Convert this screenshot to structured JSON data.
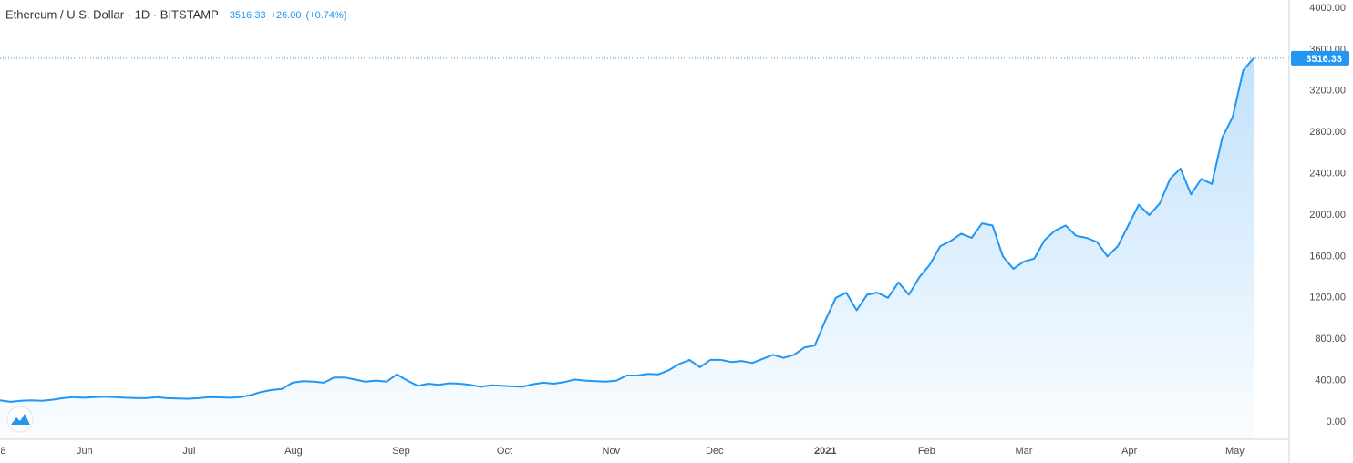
{
  "chart_data": {
    "type": "area",
    "title": "Ethereum / U.S. Dollar · 1D · BITSTAMP",
    "change": "+26.00",
    "change_percent": "(+0.74%)",
    "series": [
      {
        "name": "ETHUSD",
        "color": "#2196f3",
        "values": [
          210,
          195,
          205,
          210,
          205,
          215,
          230,
          240,
          235,
          240,
          245,
          240,
          235,
          232,
          230,
          240,
          230,
          228,
          225,
          230,
          240,
          238,
          235,
          240,
          260,
          290,
          310,
          320,
          380,
          395,
          390,
          380,
          430,
          430,
          410,
          390,
          400,
          390,
          460,
          400,
          350,
          370,
          360,
          375,
          370,
          360,
          340,
          355,
          350,
          345,
          340,
          365,
          380,
          370,
          385,
          410,
          400,
          395,
          390,
          400,
          450,
          450,
          465,
          460,
          500,
          560,
          600,
          530,
          600,
          600,
          580,
          590,
          570,
          610,
          650,
          620,
          650,
          720,
          740,
          980,
          1200,
          1250,
          1080,
          1230,
          1250,
          1200,
          1350,
          1230,
          1400,
          1520,
          1700,
          1750,
          1820,
          1780,
          1920,
          1900,
          1600,
          1480,
          1550,
          1580,
          1760,
          1850,
          1900,
          1800,
          1780,
          1740,
          1600,
          1700,
          1900,
          2100,
          2000,
          2110,
          2350,
          2450,
          2200,
          2350,
          2300,
          2750,
          2950,
          3400,
          3516.33
        ]
      }
    ],
    "xlim": [
      0,
      123.4
    ],
    "xticks": [
      {
        "value": 0.3,
        "label": "8"
      },
      {
        "value": 8.1,
        "label": "Jun"
      },
      {
        "value": 18.1,
        "label": "Jul"
      },
      {
        "value": 28.1,
        "label": "Aug"
      },
      {
        "value": 38.4,
        "label": "Sep"
      },
      {
        "value": 48.3,
        "label": "Oct"
      },
      {
        "value": 58.5,
        "label": "Nov"
      },
      {
        "value": 68.4,
        "label": "Dec"
      },
      {
        "value": 79.0,
        "label": "2021",
        "bold": true
      },
      {
        "value": 88.7,
        "label": "Feb"
      },
      {
        "value": 98.0,
        "label": "Mar"
      },
      {
        "value": 108.1,
        "label": "Apr"
      },
      {
        "value": 118.2,
        "label": "May"
      }
    ],
    "ylim": [
      -167,
      4079
    ],
    "yticks": [
      {
        "value": 0,
        "label": "0.00"
      },
      {
        "value": 400,
        "label": "400.00"
      },
      {
        "value": 800,
        "label": "800.00"
      },
      {
        "value": 1200,
        "label": "1200.00"
      },
      {
        "value": 1600,
        "label": "1600.00"
      },
      {
        "value": 2000,
        "label": "2000.00"
      },
      {
        "value": 2400,
        "label": "2400.00"
      },
      {
        "value": 2800,
        "label": "2800.00"
      },
      {
        "value": 3200,
        "label": "3200.00"
      },
      {
        "value": 3600,
        "label": "3600.00"
      },
      {
        "value": 4000,
        "label": "4000.00"
      }
    ],
    "grid": false
  }
}
